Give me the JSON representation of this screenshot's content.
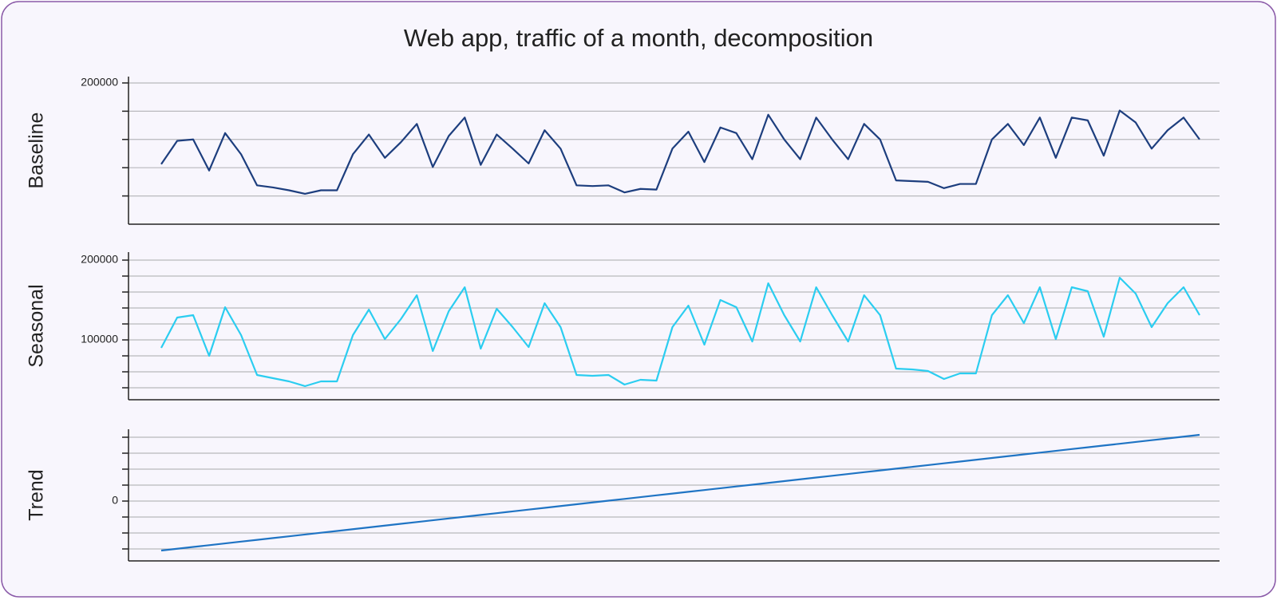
{
  "title": "Web app, traffic of a month, decomposition",
  "chart_data": [
    {
      "type": "line",
      "ylabel": "Baseline",
      "color": "#1d3e7e",
      "ylim": [
        0,
        209000
      ],
      "yticks": [
        200000,
        {
          "value": 160000,
          "label": null
        },
        {
          "value": 120000,
          "label": null
        },
        {
          "value": 80000,
          "label": null
        },
        {
          "value": 40000,
          "label": null
        }
      ],
      "grid": true,
      "values": [
        85000,
        118000,
        120000,
        76000,
        129000,
        99000,
        55000,
        52000,
        48000,
        43000,
        48000,
        48000,
        99000,
        127000,
        94000,
        116000,
        142000,
        81000,
        125000,
        151000,
        84000,
        127000,
        107000,
        86000,
        133000,
        107000,
        55000,
        54000,
        55000,
        45000,
        50000,
        49000,
        107000,
        131000,
        88000,
        137000,
        129000,
        92000,
        155000,
        120000,
        92000,
        151000,
        120000,
        92000,
        142000,
        120000,
        62000,
        61000,
        60000,
        51000,
        57000,
        57000,
        120000,
        142000,
        112000,
        151000,
        94000,
        151000,
        147000,
        97000,
        161000,
        144000,
        107000,
        133000,
        151000,
        120000
      ]
    },
    {
      "type": "line",
      "ylabel": "Seasonal",
      "color": "#2bcdf0",
      "ylim": [
        25000,
        210000
      ],
      "yticks": [
        200000,
        {
          "value": 180000,
          "label": null
        },
        {
          "value": 160000,
          "label": null
        },
        {
          "value": 140000,
          "label": null
        },
        {
          "value": 120000,
          "label": null
        },
        100000,
        {
          "value": 80000,
          "label": null
        },
        {
          "value": 60000,
          "label": null
        },
        {
          "value": 40000,
          "label": null
        }
      ],
      "grid": true,
      "values": [
        90000,
        128000,
        131000,
        80000,
        141000,
        106000,
        56000,
        52000,
        48000,
        42000,
        48000,
        48000,
        106000,
        138000,
        101000,
        126000,
        156000,
        86000,
        136000,
        166000,
        89000,
        139000,
        116000,
        91000,
        146000,
        116000,
        56000,
        55000,
        56000,
        44000,
        50000,
        49000,
        116000,
        143000,
        94000,
        150000,
        141000,
        98000,
        171000,
        131000,
        98000,
        166000,
        131000,
        98000,
        156000,
        131000,
        64000,
        63000,
        61000,
        51000,
        58000,
        58000,
        131000,
        156000,
        121000,
        166000,
        101000,
        166000,
        161000,
        104000,
        178000,
        158000,
        116000,
        146000,
        166000,
        131000
      ]
    },
    {
      "type": "line",
      "ylabel": "Trend",
      "color": "#1f74c4",
      "ylim": [
        -18750,
        22500
      ],
      "yticks": [
        {
          "value": 20000,
          "label": null
        },
        {
          "value": 15000,
          "label": null
        },
        {
          "value": 10000,
          "label": null
        },
        {
          "value": 5000,
          "label": null
        },
        0,
        {
          "value": -5000,
          "label": null
        },
        {
          "value": -10000,
          "label": null
        },
        {
          "value": -15000,
          "label": null
        }
      ],
      "grid": true,
      "values": [
        -15500,
        -14940,
        -14380,
        -13830,
        -13270,
        -12710,
        -12150,
        -11600,
        -11040,
        -10480,
        -9920,
        -9370,
        -8810,
        -8250,
        -7690,
        -7130,
        -6580,
        -6020,
        -5460,
        -4900,
        -4350,
        -3790,
        -3230,
        -2670,
        -2120,
        -1560,
        -1000,
        -440,
        120,
        670,
        1230,
        1790,
        2350,
        2900,
        3460,
        4020,
        4580,
        5130,
        5690,
        6250,
        6810,
        7370,
        7920,
        8480,
        9040,
        9600,
        10150,
        10710,
        11270,
        11830,
        12380,
        12940,
        13500,
        14060,
        14620,
        15170,
        15730,
        16290,
        16850,
        17400,
        17960,
        18520,
        19080,
        19630,
        20190,
        20750
      ]
    }
  ]
}
